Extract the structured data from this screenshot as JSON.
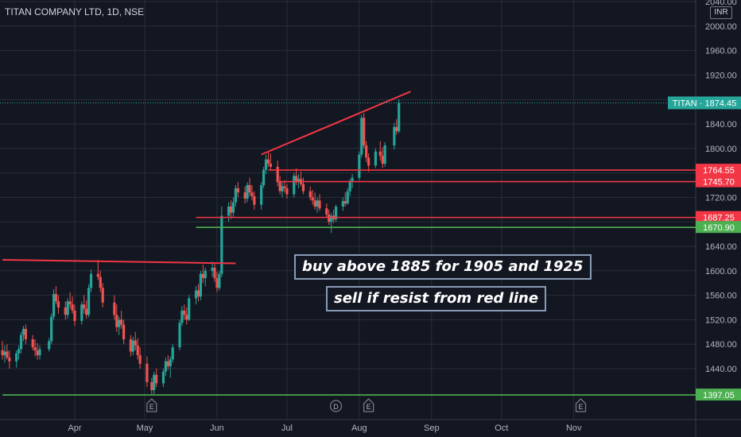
{
  "header": {
    "title": "TITAN COMPANY LTD, 1D, NSE"
  },
  "currency": "INR",
  "colors": {
    "background": "#131722",
    "up": "#26a69a",
    "down": "#ef5350",
    "resistance": "#f23645",
    "support": "#4caf50",
    "grid": "#2a2e39",
    "text": "#b2b5be"
  },
  "notes": [
    "buy above 1885 for 1905 and 1925",
    "sell if resist from red line"
  ],
  "price_tag": {
    "label": "TITAN",
    "value": "1874.45"
  },
  "chart_data": {
    "type": "candlestick",
    "title": "TITAN COMPANY LTD, 1D, NSE",
    "ylim": [
      1385,
      2042
    ],
    "yticks": [
      "2040.00",
      "2000.00",
      "1960.00",
      "1920.00",
      "1880.00",
      "1840.00",
      "1800.00",
      "1760.00",
      "1720.00",
      "1680.00",
      "1640.00",
      "1600.00",
      "1560.00",
      "1520.00",
      "1480.00",
      "1440.00"
    ],
    "xticks": [
      "Apr",
      "May",
      "Jun",
      "Jul",
      "Aug",
      "Sep",
      "Oct",
      "Nov"
    ],
    "horizontal_levels": [
      {
        "value": 1764.55,
        "label": "1764.55",
        "color": "#f23645",
        "start": "2022-06-23"
      },
      {
        "value": 1745.7,
        "label": "1745.70",
        "color": "#f23645",
        "start": "2022-06-27"
      },
      {
        "value": 1687.25,
        "label": "1687.25",
        "color": "#f23645",
        "start": "2022-05-23"
      },
      {
        "value": 1670.9,
        "label": "1670.90",
        "color": "#4caf50",
        "start": "2022-05-23"
      },
      {
        "value": 1397.05,
        "label": "1397.05",
        "color": "#4caf50",
        "start": "2022-03-01"
      }
    ],
    "trendlines": [
      {
        "from": [
          "2022-03-01",
          1618
        ],
        "to": [
          "2022-06-09",
          1612
        ],
        "color": "#f23645"
      },
      {
        "from": [
          "2022-06-20",
          1790
        ],
        "to": [
          "2022-08-23",
          1893
        ],
        "color": "#f23645"
      }
    ],
    "events": [
      {
        "date": "2022-05-04",
        "label": "E"
      },
      {
        "date": "2022-07-22",
        "label": "D"
      },
      {
        "date": "2022-08-05",
        "label": "E"
      },
      {
        "date": "2022-11-04",
        "label": "E"
      }
    ],
    "ohlc": [
      [
        "2022-03-01",
        1470,
        1485,
        1455,
        1462
      ],
      [
        "2022-03-02",
        1462,
        1478,
        1450,
        1468
      ],
      [
        "2022-03-03",
        1468,
        1480,
        1455,
        1458
      ],
      [
        "2022-03-04",
        1458,
        1470,
        1440,
        1452
      ],
      [
        "2022-03-07",
        1452,
        1470,
        1442,
        1465
      ],
      [
        "2022-03-08",
        1465,
        1478,
        1455,
        1472
      ],
      [
        "2022-03-09",
        1472,
        1500,
        1465,
        1495
      ],
      [
        "2022-03-10",
        1495,
        1510,
        1485,
        1505
      ],
      [
        "2022-03-11",
        1505,
        1512,
        1480,
        1488
      ],
      [
        "2022-03-14",
        1488,
        1495,
        1470,
        1475
      ],
      [
        "2022-03-15",
        1475,
        1488,
        1460,
        1470
      ],
      [
        "2022-03-16",
        1470,
        1482,
        1455,
        1462
      ],
      [
        "2022-03-17",
        1462,
        1478,
        1455,
        1472
      ],
      [
        "2022-03-21",
        1472,
        1490,
        1468,
        1485
      ],
      [
        "2022-03-22",
        1485,
        1530,
        1480,
        1525
      ],
      [
        "2022-03-23",
        1525,
        1570,
        1520,
        1562
      ],
      [
        "2022-03-24",
        1562,
        1575,
        1545,
        1550
      ],
      [
        "2022-03-25",
        1550,
        1560,
        1530,
        1540
      ],
      [
        "2022-03-28",
        1540,
        1550,
        1520,
        1528
      ],
      [
        "2022-03-29",
        1528,
        1555,
        1522,
        1550
      ],
      [
        "2022-03-30",
        1550,
        1565,
        1538,
        1545
      ],
      [
        "2022-03-31",
        1545,
        1558,
        1530,
        1535
      ],
      [
        "2022-04-01",
        1535,
        1545,
        1510,
        1518
      ],
      [
        "2022-04-04",
        1518,
        1550,
        1512,
        1545
      ],
      [
        "2022-04-05",
        1545,
        1560,
        1530,
        1538
      ],
      [
        "2022-04-06",
        1538,
        1552,
        1522,
        1528
      ],
      [
        "2022-04-07",
        1528,
        1578,
        1524,
        1572
      ],
      [
        "2022-04-08",
        1572,
        1602,
        1565,
        1595
      ],
      [
        "2022-04-11",
        1595,
        1618,
        1585,
        1590
      ],
      [
        "2022-04-12",
        1590,
        1600,
        1565,
        1572
      ],
      [
        "2022-04-13",
        1572,
        1580,
        1540,
        1548
      ],
      [
        "2022-04-18",
        1548,
        1560,
        1520,
        1528
      ],
      [
        "2022-04-19",
        1528,
        1545,
        1500,
        1508
      ],
      [
        "2022-04-20",
        1508,
        1525,
        1495,
        1520
      ],
      [
        "2022-04-21",
        1520,
        1535,
        1505,
        1512
      ],
      [
        "2022-04-22",
        1512,
        1520,
        1480,
        1488
      ],
      [
        "2022-04-25",
        1488,
        1495,
        1460,
        1468
      ],
      [
        "2022-04-26",
        1468,
        1492,
        1462,
        1486
      ],
      [
        "2022-04-27",
        1486,
        1500,
        1470,
        1478
      ],
      [
        "2022-04-28",
        1478,
        1490,
        1455,
        1462
      ],
      [
        "2022-04-29",
        1462,
        1475,
        1440,
        1448
      ],
      [
        "2022-05-02",
        1448,
        1460,
        1410,
        1418
      ],
      [
        "2022-05-04",
        1418,
        1425,
        1398,
        1405
      ],
      [
        "2022-05-05",
        1405,
        1435,
        1398,
        1430
      ],
      [
        "2022-05-06",
        1430,
        1440,
        1410,
        1416
      ],
      [
        "2022-05-09",
        1416,
        1440,
        1410,
        1435
      ],
      [
        "2022-05-10",
        1435,
        1458,
        1428,
        1452
      ],
      [
        "2022-05-11",
        1452,
        1462,
        1438,
        1444
      ],
      [
        "2022-05-12",
        1444,
        1460,
        1425,
        1455
      ],
      [
        "2022-05-13",
        1455,
        1480,
        1450,
        1475
      ],
      [
        "2022-05-16",
        1475,
        1520,
        1470,
        1515
      ],
      [
        "2022-05-17",
        1515,
        1542,
        1510,
        1535
      ],
      [
        "2022-05-18",
        1535,
        1545,
        1520,
        1528
      ],
      [
        "2022-05-19",
        1528,
        1540,
        1512,
        1520
      ],
      [
        "2022-05-20",
        1520,
        1560,
        1518,
        1555
      ],
      [
        "2022-05-23",
        1555,
        1575,
        1545,
        1568
      ],
      [
        "2022-05-24",
        1568,
        1578,
        1550,
        1558
      ],
      [
        "2022-05-25",
        1558,
        1600,
        1552,
        1595
      ],
      [
        "2022-05-26",
        1595,
        1610,
        1580,
        1588
      ],
      [
        "2022-05-27",
        1588,
        1605,
        1575,
        1600
      ],
      [
        "2022-05-30",
        1600,
        1615,
        1590,
        1605
      ],
      [
        "2022-05-31",
        1605,
        1612,
        1582,
        1588
      ],
      [
        "2022-06-01",
        1588,
        1598,
        1565,
        1572
      ],
      [
        "2022-06-02",
        1572,
        1600,
        1568,
        1595
      ],
      [
        "2022-06-03",
        1595,
        1705,
        1590,
        1690
      ],
      [
        "2022-06-06",
        1690,
        1712,
        1680,
        1705
      ],
      [
        "2022-06-07",
        1705,
        1715,
        1685,
        1695
      ],
      [
        "2022-06-08",
        1695,
        1720,
        1688,
        1712
      ],
      [
        "2022-06-09",
        1712,
        1740,
        1705,
        1735
      ],
      [
        "2022-06-10",
        1735,
        1745,
        1720,
        1728
      ],
      [
        "2022-06-13",
        1728,
        1738,
        1710,
        1718
      ],
      [
        "2022-06-14",
        1718,
        1745,
        1712,
        1740
      ],
      [
        "2022-06-15",
        1740,
        1752,
        1722,
        1728
      ],
      [
        "2022-06-16",
        1728,
        1740,
        1715,
        1722
      ],
      [
        "2022-06-17",
        1722,
        1730,
        1700,
        1708
      ],
      [
        "2022-06-20",
        1708,
        1745,
        1700,
        1740
      ],
      [
        "2022-06-21",
        1740,
        1770,
        1735,
        1765
      ],
      [
        "2022-06-22",
        1765,
        1790,
        1758,
        1782
      ],
      [
        "2022-06-23",
        1782,
        1795,
        1770,
        1775
      ],
      [
        "2022-06-24",
        1775,
        1792,
        1765,
        1770
      ],
      [
        "2022-06-27",
        1770,
        1780,
        1738,
        1745
      ],
      [
        "2022-06-28",
        1745,
        1755,
        1725,
        1730
      ],
      [
        "2022-06-29",
        1730,
        1745,
        1720,
        1738
      ],
      [
        "2022-06-30",
        1738,
        1748,
        1728,
        1735
      ],
      [
        "2022-07-01",
        1735,
        1742,
        1718,
        1725
      ],
      [
        "2022-07-04",
        1725,
        1760,
        1720,
        1755
      ],
      [
        "2022-07-05",
        1755,
        1768,
        1740,
        1745
      ],
      [
        "2022-07-06",
        1745,
        1758,
        1735,
        1750
      ],
      [
        "2022-07-07",
        1750,
        1762,
        1738,
        1742
      ],
      [
        "2022-07-08",
        1742,
        1752,
        1725,
        1730
      ],
      [
        "2022-07-11",
        1730,
        1738,
        1715,
        1720
      ],
      [
        "2022-07-12",
        1720,
        1732,
        1708,
        1715
      ],
      [
        "2022-07-13",
        1715,
        1728,
        1700,
        1705
      ],
      [
        "2022-07-14",
        1705,
        1720,
        1695,
        1715
      ],
      [
        "2022-07-15",
        1715,
        1725,
        1698,
        1702
      ],
      [
        "2022-07-18",
        1702,
        1710,
        1688,
        1692
      ],
      [
        "2022-07-19",
        1692,
        1700,
        1675,
        1680
      ],
      [
        "2022-07-20",
        1680,
        1695,
        1662,
        1690
      ],
      [
        "2022-07-21",
        1690,
        1700,
        1678,
        1684
      ],
      [
        "2022-07-22",
        1684,
        1708,
        1680,
        1705
      ],
      [
        "2022-07-25",
        1705,
        1720,
        1698,
        1714
      ],
      [
        "2022-07-26",
        1714,
        1728,
        1705,
        1710
      ],
      [
        "2022-07-27",
        1710,
        1735,
        1708,
        1730
      ],
      [
        "2022-07-28",
        1730,
        1750,
        1722,
        1745
      ],
      [
        "2022-07-29",
        1745,
        1758,
        1735,
        1752
      ],
      [
        "2022-08-01",
        1752,
        1795,
        1748,
        1790
      ],
      [
        "2022-08-02",
        1790,
        1855,
        1785,
        1850
      ],
      [
        "2022-08-03",
        1850,
        1858,
        1800,
        1805
      ],
      [
        "2022-08-04",
        1805,
        1812,
        1778,
        1785
      ],
      [
        "2022-08-05",
        1785,
        1792,
        1762,
        1772
      ],
      [
        "2022-08-08",
        1772,
        1800,
        1768,
        1795
      ],
      [
        "2022-08-10",
        1795,
        1812,
        1780,
        1788
      ],
      [
        "2022-08-11",
        1788,
        1802,
        1768,
        1775
      ],
      [
        "2022-08-12",
        1775,
        1810,
        1770,
        1805
      ],
      [
        "2022-08-16",
        1805,
        1842,
        1798,
        1835
      ],
      [
        "2022-08-17",
        1835,
        1848,
        1822,
        1828
      ],
      [
        "2022-08-18",
        1828,
        1880,
        1825,
        1874.45
      ]
    ]
  }
}
